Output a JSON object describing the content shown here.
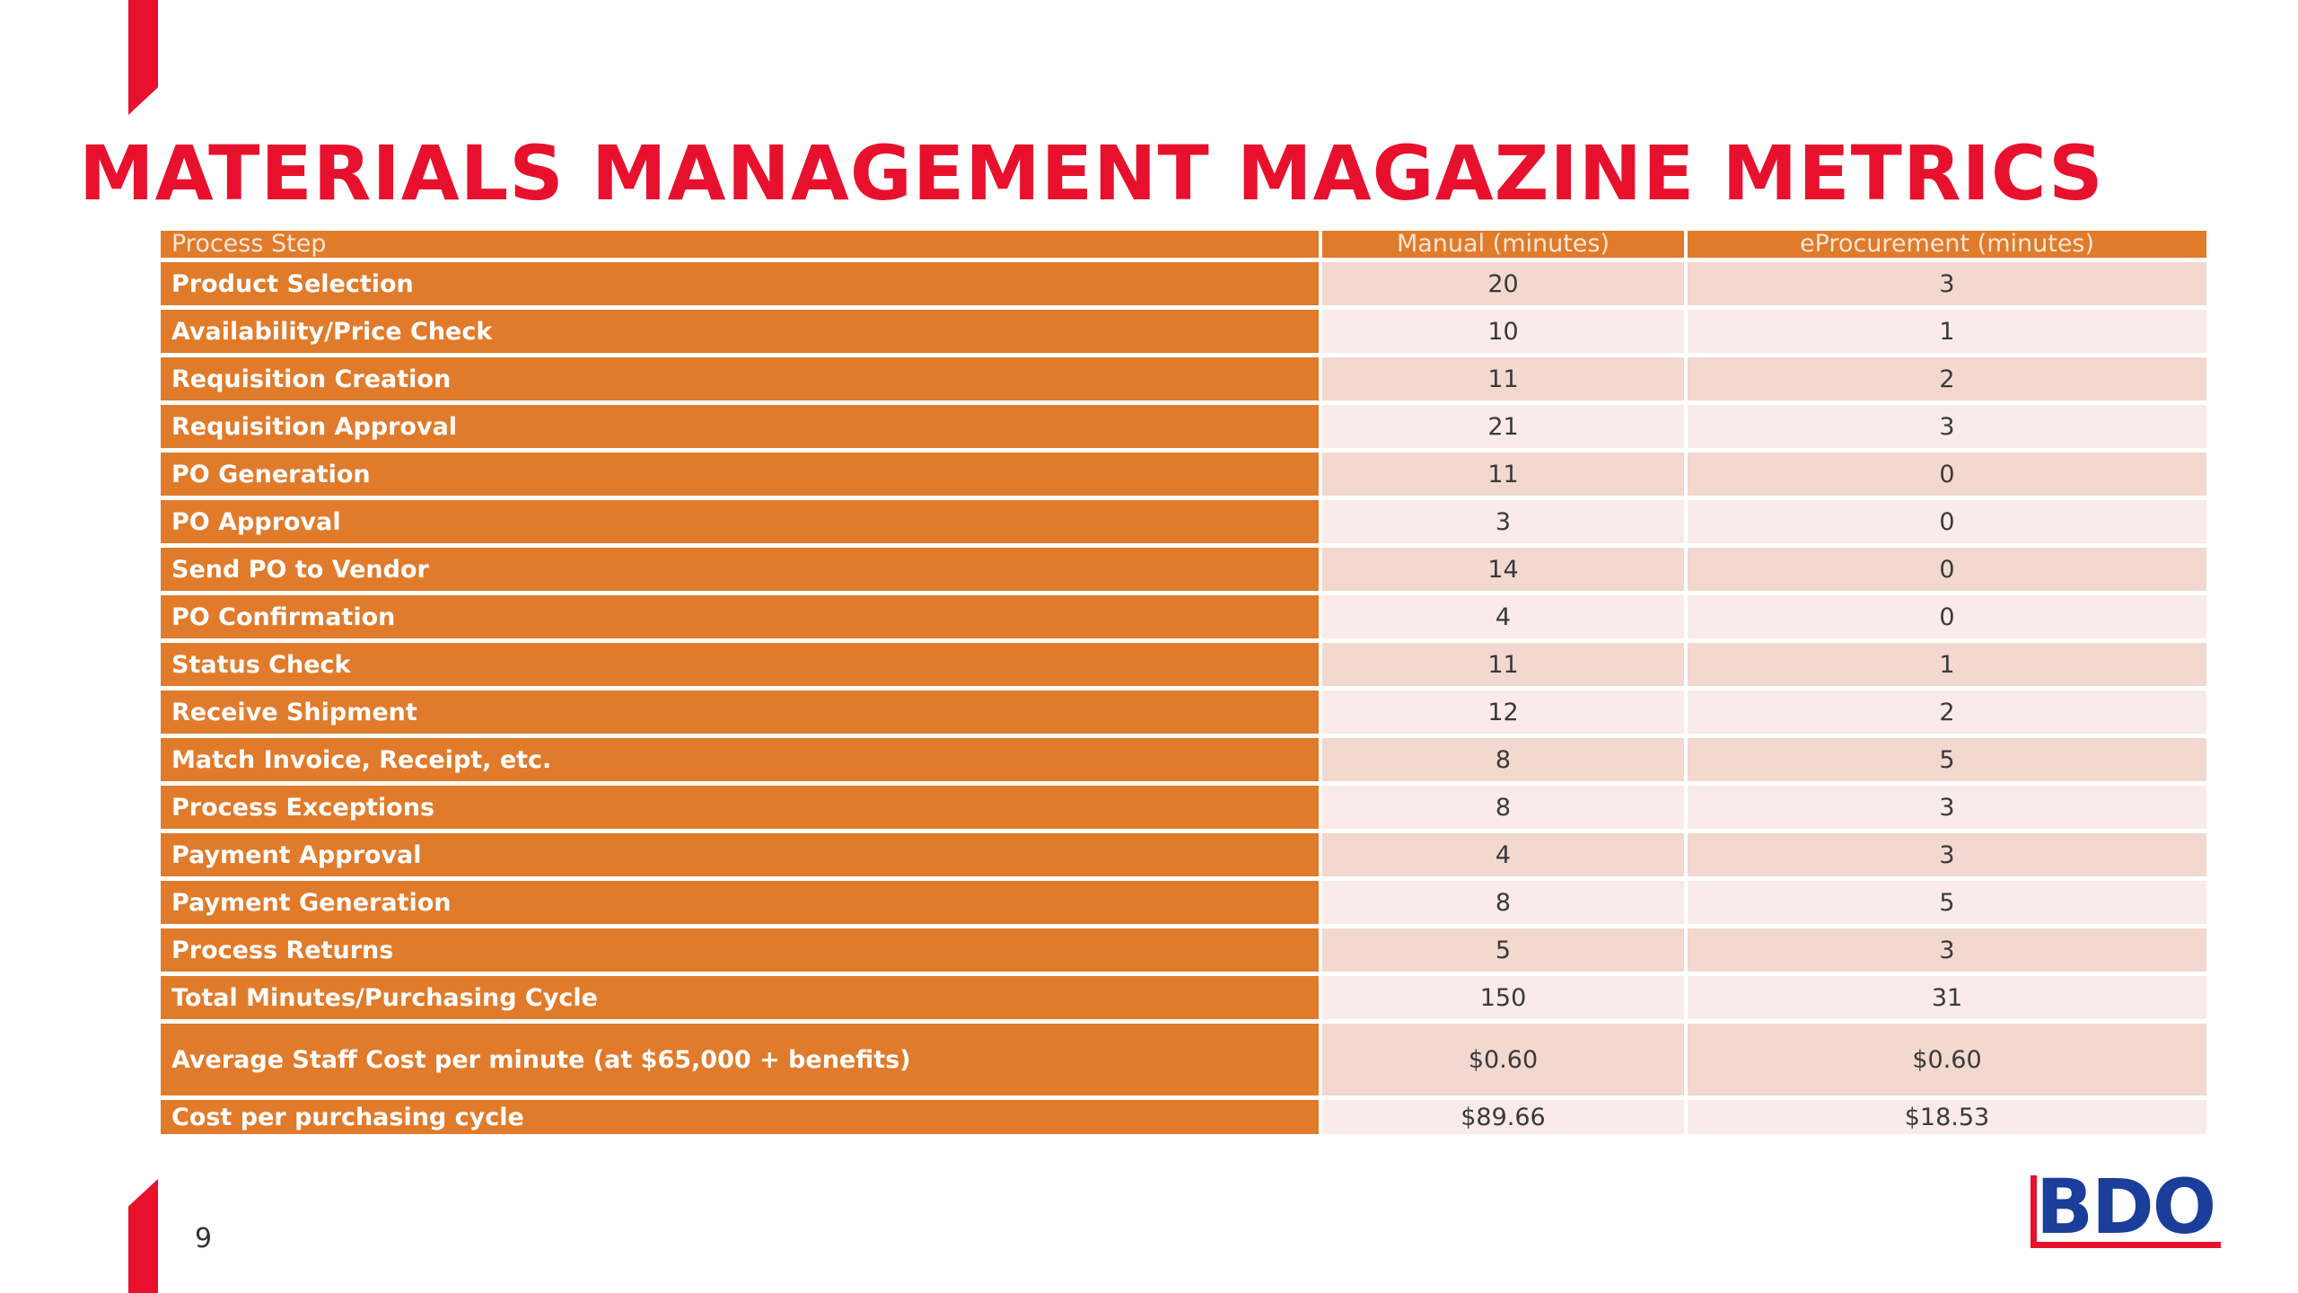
{
  "slide": {
    "title": "MATERIALS MANAGEMENT MAGAZINE METRICS",
    "page_number": "9",
    "logo_text": "BDO"
  },
  "colors": {
    "accent": "#e8112d",
    "header_fill": "#e07b2c",
    "row_fill_dark": "#f2d8cf",
    "row_fill_light": "#f9ebe7",
    "logo_blue": "#1a3e9a"
  },
  "table": {
    "headers": [
      "Process Step",
      "Manual (minutes)",
      "eProcurement (minutes)"
    ],
    "rows": [
      [
        "Product Selection",
        "20",
        "3"
      ],
      [
        "Availability/Price Check",
        "10",
        "1"
      ],
      [
        "Requisition Creation",
        "11",
        "2"
      ],
      [
        "Requisition Approval",
        "21",
        "3"
      ],
      [
        "PO Generation",
        "11",
        "0"
      ],
      [
        "PO Approval",
        "3",
        "0"
      ],
      [
        "Send PO to Vendor",
        "14",
        "0"
      ],
      [
        "PO Confirmation",
        "4",
        "0"
      ],
      [
        "Status Check",
        "11",
        "1"
      ],
      [
        "Receive Shipment",
        "12",
        "2"
      ],
      [
        "Match Invoice, Receipt, etc.",
        "8",
        "5"
      ],
      [
        "Process Exceptions",
        "8",
        "3"
      ],
      [
        "Payment Approval",
        "4",
        "3"
      ],
      [
        "Payment Generation",
        "8",
        "5"
      ],
      [
        "Process Returns",
        "5",
        "3"
      ],
      [
        "Total Minutes/Purchasing Cycle",
        "150",
        "31"
      ],
      [
        "Average Staff Cost per minute (at $65,000 + benefits)",
        "$0.60",
        "$0.60"
      ],
      [
        "Cost per purchasing cycle",
        "$89.66",
        "$18.53"
      ]
    ]
  }
}
